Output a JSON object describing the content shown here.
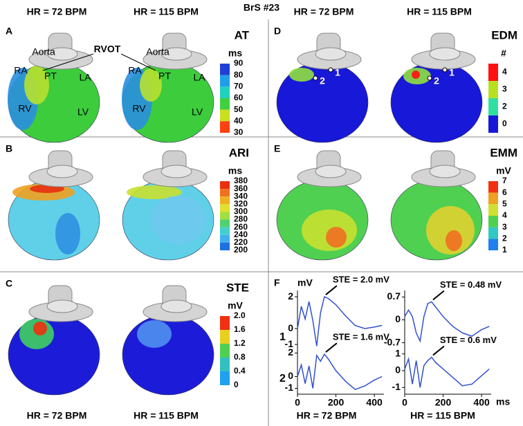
{
  "title": "BrS #23",
  "top_headers": [
    "HR = 72 BPM",
    "HR = 115 BPM",
    "HR = 72 BPM",
    "HR = 115 BPM"
  ],
  "bottom_headers": [
    "HR = 72 BPM",
    "HR = 115 BPM",
    "HR = 72 BPM",
    "HR = 115 BPM"
  ],
  "panels": [
    {
      "label": "A",
      "measure": "AT",
      "unit": "ms",
      "callout": "RVOT",
      "scale": {
        "ticks": [
          90,
          80,
          70,
          60,
          50,
          40,
          30
        ],
        "colors": [
          "#1f3fd8",
          "#1f9fe8",
          "#20d0c0",
          "#40d040",
          "#c8e020",
          "#ff4010"
        ]
      },
      "hearts": [
        {
          "labels": [
            "Aorta",
            "RA",
            "PT",
            "LA",
            "RV",
            "LV"
          ]
        },
        {
          "labels": [
            "Aorta",
            "RA",
            "PT",
            "LA",
            "RV",
            "LV"
          ]
        }
      ]
    },
    {
      "label": "B",
      "measure": "ARI",
      "unit": "ms",
      "scale": {
        "ticks": [
          380,
          360,
          340,
          320,
          300,
          280,
          260,
          240,
          220,
          200
        ],
        "colors": [
          "#e83010",
          "#f07020",
          "#f0b020",
          "#e0e030",
          "#a0e040",
          "#50d070",
          "#40d0d0",
          "#40b0f0",
          "#2070e0"
        ]
      },
      "hearts": [
        {
          "labels": []
        },
        {
          "labels": []
        }
      ]
    },
    {
      "label": "C",
      "measure": "STE",
      "unit": "mV",
      "scale": {
        "ticks": [
          {
            "value": 2,
            "label": "2.0"
          },
          1.6,
          1.2,
          0.8,
          0.4,
          0
        ],
        "colors": [
          "#f03010",
          "#e8d020",
          "#50d050",
          "#30c0c0",
          "#20a0f0"
        ]
      },
      "hearts": [
        {
          "labels": []
        },
        {
          "labels": []
        }
      ]
    },
    {
      "label": "D",
      "measure": "EDM",
      "unit": "#",
      "scale": {
        "ticks": [
          4,
          3,
          2,
          0
        ],
        "colors": [
          "#ff1010",
          "#b8e020",
          "#30e0a0",
          "#1818d8"
        ]
      },
      "hearts": [
        {
          "labels": [
            "1",
            "2"
          ]
        },
        {
          "labels": [
            "1",
            "2"
          ]
        }
      ]
    },
    {
      "label": "E",
      "measure": "EMM",
      "unit": "mV",
      "scale": {
        "ticks": [
          7,
          6,
          5,
          4,
          3,
          2,
          1
        ],
        "colors": [
          "#f03010",
          "#f0a020",
          "#d0e030",
          "#50d050",
          "#30c8c0",
          "#2080f0"
        ]
      },
      "hearts": [
        {
          "labels": []
        },
        {
          "labels": []
        }
      ]
    }
  ],
  "panel_f": {
    "label": "F",
    "y_unit": "mV",
    "row_labels": [
      "1",
      "2"
    ],
    "x_unit": "ms"
  },
  "chart_data": [
    {
      "type": "line",
      "annotation": "STE = 2.0 mV",
      "color": "#3050d0",
      "x": [
        0,
        20,
        40,
        60,
        80,
        100,
        120,
        140,
        160,
        200,
        250,
        300,
        350,
        400,
        440
      ],
      "values": [
        0,
        1.4,
        0.6,
        1.7,
        0.5,
        -1.1,
        1.0,
        2.0,
        1.9,
        1.5,
        0.8,
        0.2,
        0,
        0.1,
        0.2
      ],
      "xlim": [
        0,
        450
      ],
      "ylim": [
        -1.3,
        2.4
      ],
      "yticks": [
        -1,
        0,
        2
      ]
    },
    {
      "type": "line",
      "annotation": "STE = 0.48 mV",
      "color": "#3050d0",
      "x": [
        0,
        20,
        40,
        60,
        80,
        100,
        120,
        140,
        160,
        200,
        250,
        300,
        350,
        400,
        440
      ],
      "values": [
        0.1,
        0.3,
        0.1,
        -0.4,
        -0.65,
        0.1,
        0.5,
        0.55,
        0.4,
        0.1,
        -0.2,
        -0.4,
        -0.5,
        -0.3,
        -0.2
      ],
      "xlim": [
        0,
        450
      ],
      "ylim": [
        -0.9,
        0.9
      ],
      "yticks": [
        -0.7,
        0,
        0.7
      ]
    },
    {
      "type": "line",
      "annotation": "STE = 1.6 mV",
      "color": "#3050d0",
      "x": [
        0,
        20,
        40,
        60,
        80,
        100,
        120,
        140,
        160,
        200,
        250,
        300,
        350,
        400,
        440
      ],
      "values": [
        0,
        1.0,
        -0.6,
        0.9,
        -1.0,
        1.8,
        1.3,
        1.9,
        1.5,
        0.5,
        -0.4,
        -1.1,
        -0.8,
        -0.3,
        0
      ],
      "xlim": [
        0,
        450
      ],
      "ylim": [
        -1.5,
        2.5
      ],
      "xticks": [
        0,
        200,
        400
      ],
      "yticks": [
        -1,
        0,
        2
      ]
    },
    {
      "type": "line",
      "annotation": "STE = 0.6 mV",
      "color": "#3050d0",
      "x": [
        0,
        20,
        40,
        60,
        80,
        100,
        120,
        140,
        160,
        200,
        250,
        300,
        350,
        400,
        440
      ],
      "values": [
        0.1,
        0.7,
        -0.8,
        0.6,
        -1.0,
        0.3,
        0.6,
        0.8,
        0.5,
        0.1,
        -0.4,
        -0.9,
        -0.8,
        -0.3,
        0.1
      ],
      "xlim": [
        0,
        450
      ],
      "ylim": [
        -1.4,
        1.4
      ],
      "xticks": [
        0,
        200,
        400
      ],
      "yticks": [
        -1,
        0,
        1
      ]
    }
  ]
}
